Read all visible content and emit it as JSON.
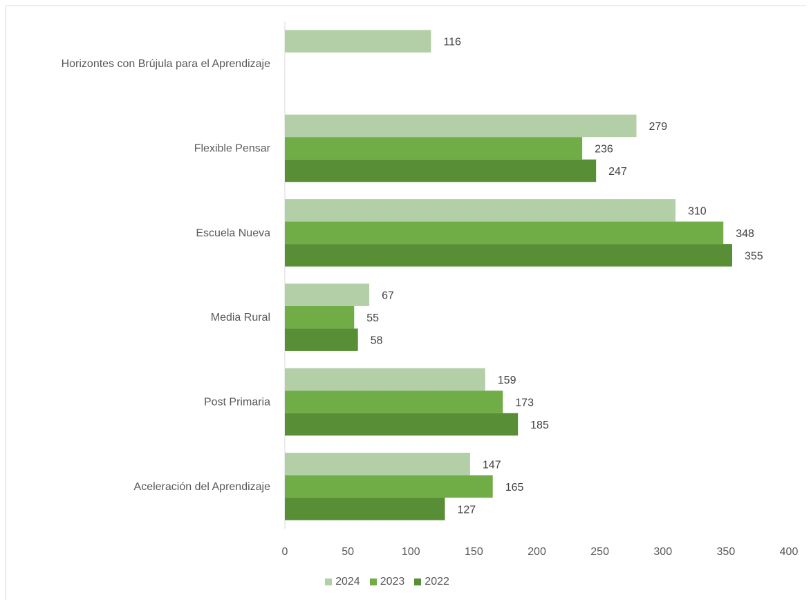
{
  "chart_data": {
    "type": "bar",
    "orientation": "horizontal",
    "categories": [
      "Horizontes con Brújula para el Aprendizaje",
      "Flexible Pensar",
      "Escuela Nueva",
      "Media Rural",
      "Post Primaria",
      "Aceleración del Aprendizaje"
    ],
    "series": [
      {
        "name": "2024",
        "color": "#b3cfa7",
        "values": [
          116,
          279,
          310,
          67,
          159,
          147
        ]
      },
      {
        "name": "2023",
        "color": "#70ad47",
        "values": [
          null,
          236,
          348,
          55,
          173,
          165
        ]
      },
      {
        "name": "2022",
        "color": "#578e36",
        "values": [
          null,
          247,
          355,
          58,
          185,
          127
        ]
      }
    ],
    "xlim": [
      0,
      400
    ],
    "xticks": [
      0,
      50,
      100,
      150,
      200,
      250,
      300,
      350,
      400
    ],
    "grid": false,
    "legend_position": "bottom",
    "title": "",
    "xlabel": "",
    "ylabel": ""
  }
}
